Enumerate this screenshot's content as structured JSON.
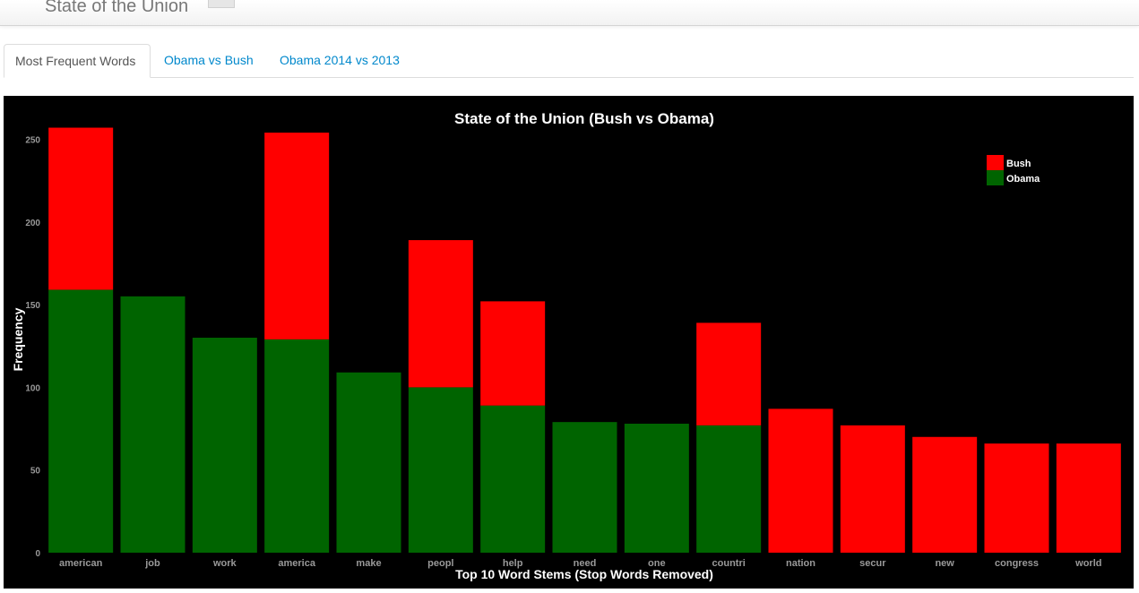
{
  "app": {
    "title": "State of the Union"
  },
  "tabs": [
    {
      "label": "Most Frequent Words",
      "active": true
    },
    {
      "label": "Obama vs Bush",
      "active": false
    },
    {
      "label": "Obama 2014 vs 2013",
      "active": false
    }
  ],
  "colors": {
    "background": "#000000",
    "bush": "#ff0000",
    "obama": "#006400",
    "tab_link": "#0088cc"
  },
  "chart_data": {
    "type": "bar",
    "stacked": true,
    "title": "State of the Union (Bush vs Obama)",
    "xlabel": "Top 10 Word Stems (Stop Words Removed)",
    "ylabel": "Frequency",
    "ylim": [
      0,
      260
    ],
    "yticks": [
      0,
      50,
      100,
      150,
      200,
      250
    ],
    "legend_position": "top-right",
    "categories": [
      "american",
      "job",
      "work",
      "america",
      "make",
      "peopl",
      "help",
      "need",
      "one",
      "countri",
      "nation",
      "secur",
      "new",
      "congress",
      "world"
    ],
    "series": [
      {
        "name": "Obama",
        "color": "#006400",
        "values": [
          159,
          155,
          130,
          129,
          109,
          100,
          89,
          79,
          78,
          77,
          0,
          0,
          0,
          0,
          0
        ]
      },
      {
        "name": "Bush",
        "color": "#ff0000",
        "values": [
          98,
          0,
          0,
          125,
          0,
          89,
          63,
          0,
          0,
          62,
          87,
          77,
          70,
          66,
          66
        ]
      }
    ]
  }
}
